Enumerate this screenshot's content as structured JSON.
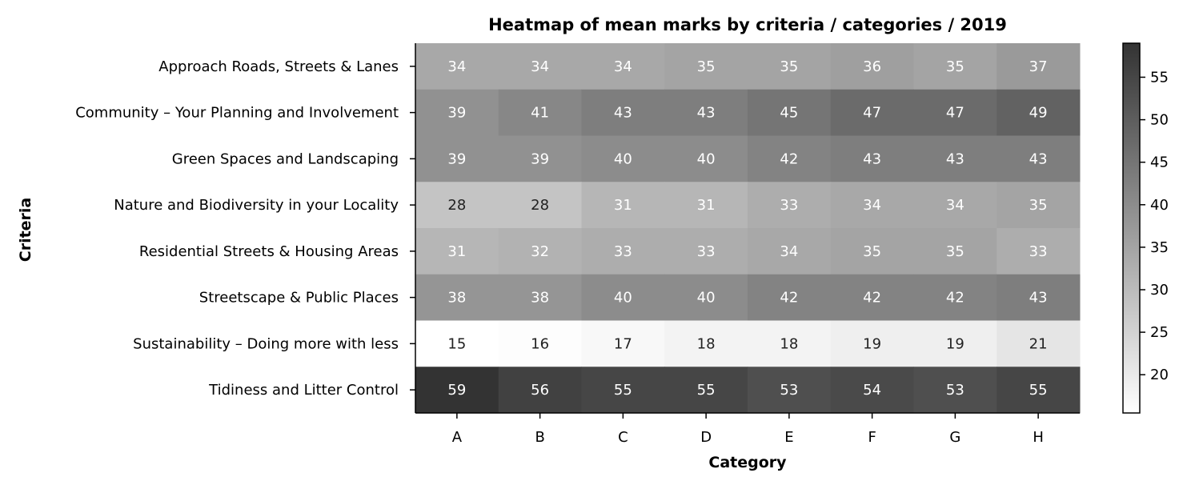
{
  "chart_data": {
    "type": "heatmap",
    "title": "Heatmap of mean marks by criteria / categories / 2019",
    "xlabel": "Category",
    "ylabel": "Criteria",
    "x_categories": [
      "A",
      "B",
      "C",
      "D",
      "E",
      "F",
      "G",
      "H"
    ],
    "y_categories": [
      "Approach Roads, Streets & Lanes",
      "Community – Your Planning and Involvement",
      "Green Spaces and Landscaping",
      "Nature and Biodiversity in your Locality",
      "Residential Streets & Housing Areas",
      "Streetscape & Public Places",
      "Sustainability – Doing more with less",
      "Tidiness and Litter Control"
    ],
    "values": [
      [
        34,
        34,
        34,
        35,
        35,
        36,
        35,
        37
      ],
      [
        39,
        41,
        43,
        43,
        45,
        47,
        47,
        49
      ],
      [
        39,
        39,
        40,
        40,
        42,
        43,
        43,
        43
      ],
      [
        28,
        28,
        31,
        31,
        33,
        34,
        34,
        35
      ],
      [
        31,
        32,
        33,
        33,
        34,
        35,
        35,
        33
      ],
      [
        38,
        38,
        40,
        40,
        42,
        42,
        42,
        43
      ],
      [
        15,
        16,
        17,
        18,
        18,
        19,
        19,
        21
      ],
      [
        59,
        56,
        55,
        55,
        53,
        54,
        53,
        55
      ]
    ],
    "colorbar": {
      "colormap": "grayscale, white to dark",
      "range": [
        15.5,
        59
      ],
      "ticks": [
        20,
        25,
        30,
        35,
        40,
        45,
        50,
        55
      ]
    }
  }
}
